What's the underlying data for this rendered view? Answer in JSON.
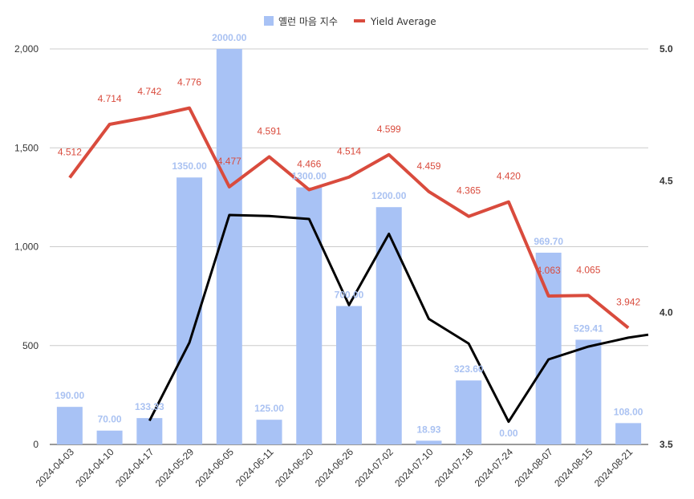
{
  "chart_data": {
    "type": "bar",
    "categories": [
      "2024-04-03",
      "2024-04-10",
      "2024-04-17",
      "2024-05-29",
      "2024-06-05",
      "2024-06-11",
      "2024-06-20",
      "2024-06-26",
      "2024-07-02",
      "2024-07-10",
      "2024-07-18",
      "2024-07-24",
      "2024-08-07",
      "2024-08-15",
      "2024-08-21"
    ],
    "series": [
      {
        "name": "옐런 마음 지수",
        "type": "bar",
        "axis": "left",
        "color": "#a8c2f5",
        "values": [
          190.0,
          70.0,
          133.33,
          1350.0,
          2000.0,
          125.0,
          1300.0,
          700.0,
          1200.0,
          18.93,
          323.6,
          0.0,
          969.7,
          529.41,
          108.0
        ],
        "value_labels": [
          "190.00",
          "70.00",
          "133.33",
          "1350.00",
          "2000.00",
          "125.00",
          "1300.00",
          "700.00",
          "1200.00",
          "18.93",
          "323.60",
          "0.00",
          "969.70",
          "529.41",
          "108.00"
        ]
      },
      {
        "name": "Yield Average",
        "type": "line",
        "axis": "right",
        "color": "#d94b3d",
        "values": [
          4.512,
          4.714,
          4.742,
          4.776,
          4.477,
          4.591,
          4.466,
          4.514,
          4.599,
          4.459,
          4.365,
          4.42,
          4.063,
          4.065,
          3.942
        ],
        "value_labels": [
          "4.512",
          "4.714",
          "4.742",
          "4.776",
          "4.477",
          "4.591",
          "4.466",
          "4.514",
          "4.599",
          "4.459",
          "4.365",
          "4.420",
          "4.063",
          "4.065",
          "3.942"
        ]
      },
      {
        "type": "line",
        "axis": "left",
        "color": "#000000",
        "values": [
          null,
          null,
          120,
          515,
          1160,
          1155,
          1140,
          705,
          1065,
          635,
          510,
          115,
          430,
          495,
          540
        ],
        "extends_to_edge_value": 555
      }
    ],
    "y_left": {
      "ylim": [
        0,
        2000
      ],
      "ticks": [
        0,
        500,
        1000,
        1500,
        2000
      ],
      "tick_labels": [
        "0",
        "500",
        "1,000",
        "1,500",
        "2,000"
      ]
    },
    "y_right": {
      "ylim": [
        3.5,
        5.0
      ],
      "ticks": [
        3.5,
        4.0,
        4.5,
        5.0
      ],
      "tick_labels": [
        "3.5",
        "4.0",
        "4.5",
        "5.0"
      ]
    },
    "grid": true,
    "legend_position": "top"
  }
}
